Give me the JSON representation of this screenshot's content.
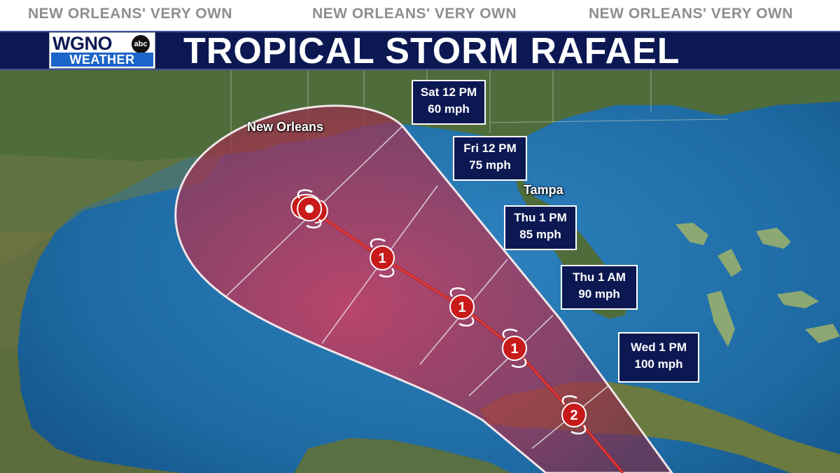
{
  "tagline": [
    "NEW ORLEANS' VERY OWN",
    "NEW ORLEANS' VERY OWN",
    "NEW ORLEANS' VERY OWN"
  ],
  "logo": {
    "station": "WGNO",
    "network": "abc",
    "sub": "WEATHER"
  },
  "title": "TROPICAL STORM RAFAEL",
  "cities": {
    "new_orleans": "New Orleans",
    "tampa": "Tampa"
  },
  "forecast_points": [
    {
      "time": "Sat 12 PM",
      "wind": "60 mph",
      "category": ""
    },
    {
      "time": "Fri 12 PM",
      "wind": "75 mph",
      "category": "1"
    },
    {
      "time": "Thu 1 PM",
      "wind": "85 mph",
      "category": "1"
    },
    {
      "time": "Thu 1 AM",
      "wind": "90 mph",
      "category": "1"
    },
    {
      "time": "Wed 1 PM",
      "wind": "100 mph",
      "category": "2"
    }
  ],
  "colors": {
    "header": "#0c1852",
    "cone": "#c8324e",
    "track": "#c01818",
    "storm_icon": "#c81a1a",
    "ocean": "#1b5f93",
    "land": "#4d6a3a"
  }
}
